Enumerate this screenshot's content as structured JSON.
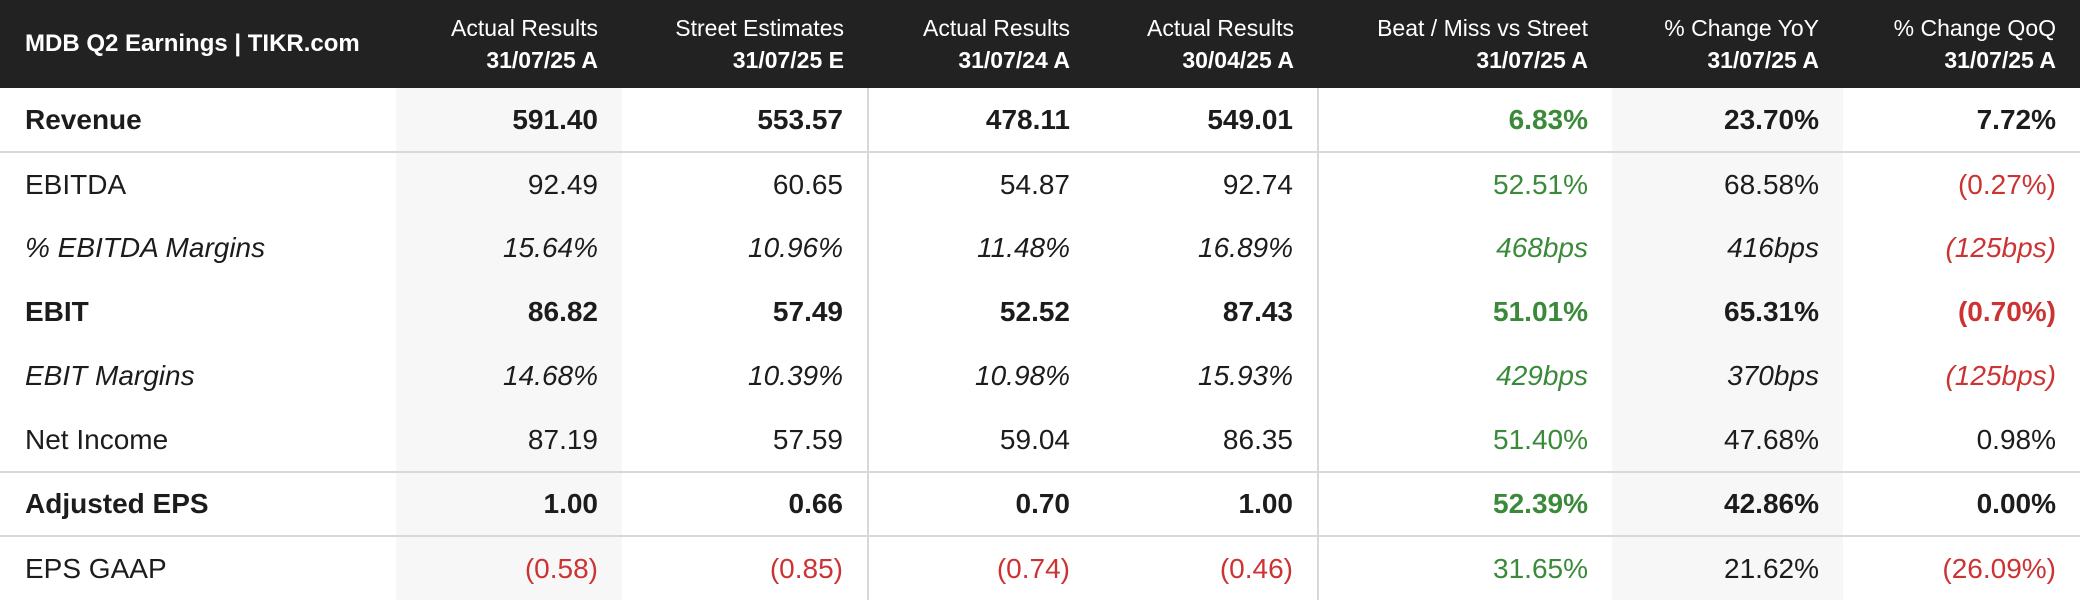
{
  "header": {
    "title": "MDB Q2 Earnings | TIKR.com",
    "columns": [
      {
        "name": "Actual Results",
        "date": "31/07/25 A"
      },
      {
        "name": "Street Estimates",
        "date": "31/07/25 E"
      },
      {
        "name": "Actual Results",
        "date": "31/07/24 A"
      },
      {
        "name": "Actual Results",
        "date": "30/04/25 A"
      },
      {
        "name": "Beat / Miss vs Street",
        "date": "31/07/25 A"
      },
      {
        "name": "% Change YoY",
        "date": "31/07/25 A"
      },
      {
        "name": "% Change QoQ",
        "date": "31/07/25 A"
      }
    ]
  },
  "rows": [
    {
      "label": "Revenue",
      "cells": [
        "591.40",
        "553.57",
        "478.11",
        "549.01",
        "6.83%",
        "23.70%",
        "7.72%"
      ]
    },
    {
      "label": "EBITDA",
      "cells": [
        "92.49",
        "60.65",
        "54.87",
        "92.74",
        "52.51%",
        "68.58%",
        "(0.27%)"
      ]
    },
    {
      "label": "% EBITDA Margins",
      "cells": [
        "15.64%",
        "10.96%",
        "11.48%",
        "16.89%",
        "468bps",
        "416bps",
        "(125bps)"
      ]
    },
    {
      "label": "EBIT",
      "cells": [
        "86.82",
        "57.49",
        "52.52",
        "87.43",
        "51.01%",
        "65.31%",
        "(0.70%)"
      ]
    },
    {
      "label": "EBIT Margins",
      "cells": [
        "14.68%",
        "10.39%",
        "10.98%",
        "15.93%",
        "429bps",
        "370bps",
        "(125bps)"
      ]
    },
    {
      "label": "Net Income",
      "cells": [
        "87.19",
        "57.59",
        "59.04",
        "86.35",
        "51.40%",
        "47.68%",
        "0.98%"
      ]
    },
    {
      "label": "Adjusted EPS",
      "cells": [
        "1.00",
        "0.66",
        "0.70",
        "1.00",
        "52.39%",
        "42.86%",
        "0.00%"
      ]
    },
    {
      "label": "EPS GAAP",
      "cells": [
        "(0.58)",
        "(0.85)",
        "(0.74)",
        "(0.46)",
        "31.65%",
        "21.62%",
        "(26.09%)"
      ]
    }
  ],
  "colors": {
    "header_bg": "#222222",
    "positive": "#3a8a3a",
    "negative": "#cc3333",
    "shaded_column": "#f7f7f7"
  }
}
